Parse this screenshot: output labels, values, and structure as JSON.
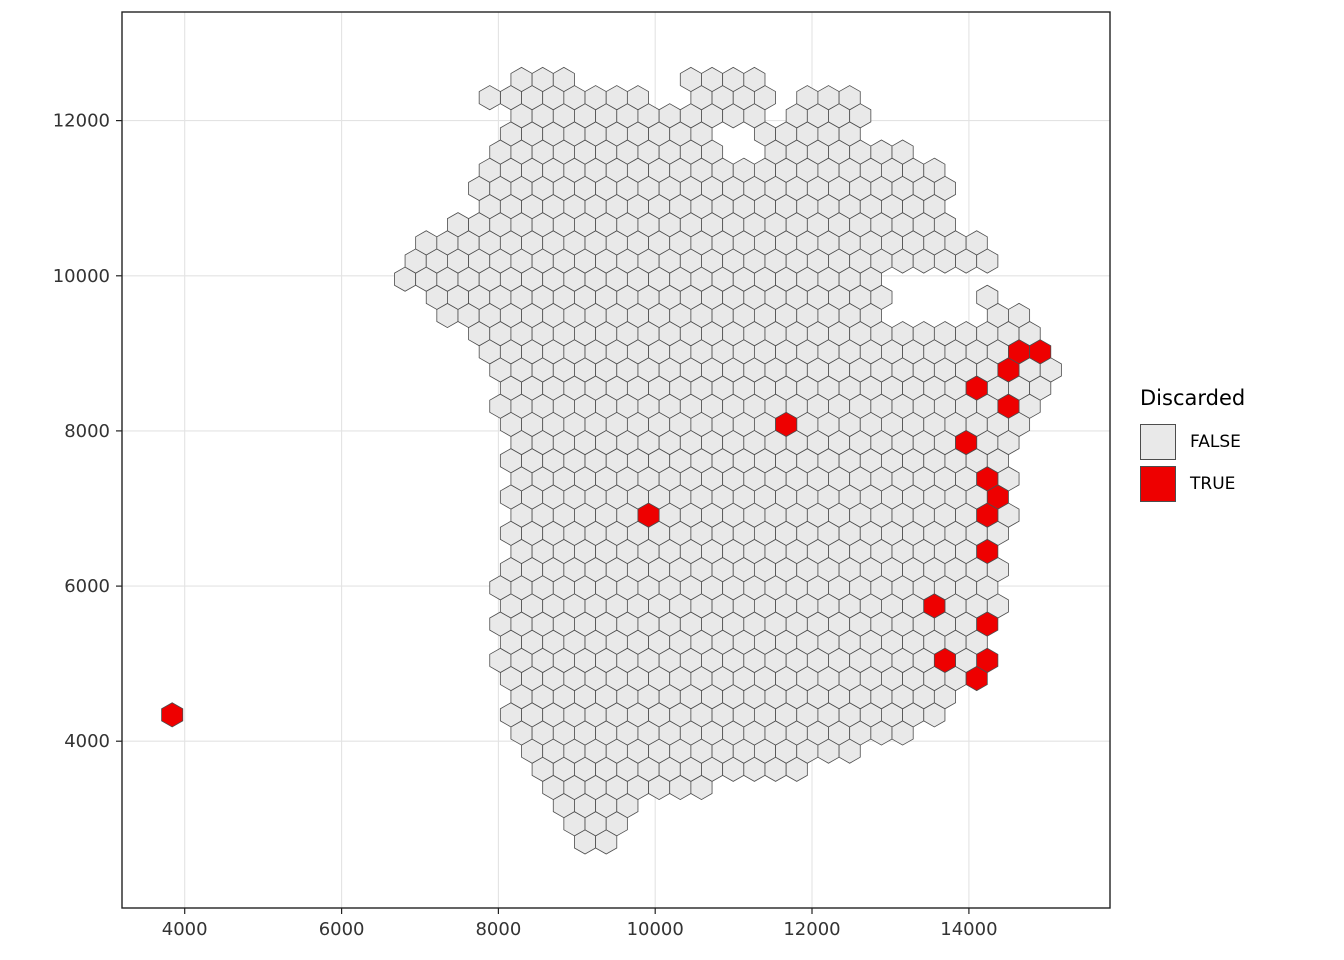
{
  "chart_data": {
    "type": "hexbin",
    "title": "",
    "xlabel": "",
    "ylabel": "",
    "x_ticks": [
      4000,
      6000,
      8000,
      10000,
      12000,
      14000
    ],
    "y_ticks": [
      4000,
      6000,
      8000,
      10000,
      12000
    ],
    "xlim": [
      3200,
      15800
    ],
    "ylim": [
      1850,
      13400
    ],
    "grid_on": true,
    "legend_position": "right",
    "legend": {
      "title": "Discarded",
      "entries": [
        {
          "label": "FALSE",
          "color": "#e9e9e9"
        },
        {
          "label": "TRUE",
          "color": "#ee0000"
        }
      ]
    },
    "colors": {
      "false_fill": "#e9e9e9",
      "true_fill": "#ee0000",
      "hex_stroke": "#4d4d4d",
      "gridline": "#e3e3e3",
      "panel_border": "#222222",
      "tick_label": "#333333",
      "panel_bg": "#ffffff"
    },
    "hex_grid": {
      "x0": 3300,
      "y0": 2000,
      "dx": 270,
      "dy": 234
    },
    "region_outline": [
      [
        8080,
        12140
      ],
      [
        8280,
        12550
      ],
      [
        8720,
        12650
      ],
      [
        9170,
        12460
      ],
      [
        9810,
        12420
      ],
      [
        10130,
        12070
      ],
      [
        10380,
        12270
      ],
      [
        10440,
        12650
      ],
      [
        10760,
        12760
      ],
      [
        11270,
        12720
      ],
      [
        11440,
        12330
      ],
      [
        11490,
        11620
      ],
      [
        11590,
        11600
      ],
      [
        11690,
        12330
      ],
      [
        11850,
        12520
      ],
      [
        12290,
        12500
      ],
      [
        12640,
        12140
      ],
      [
        12740,
        11750
      ],
      [
        13190,
        11650
      ],
      [
        13570,
        11430
      ],
      [
        13760,
        11040
      ],
      [
        13890,
        10650
      ],
      [
        14210,
        10460
      ],
      [
        14340,
        10200
      ],
      [
        14210,
        9880
      ],
      [
        14400,
        9690
      ],
      [
        14780,
        9560
      ],
      [
        15010,
        9170
      ],
      [
        15060,
        8720
      ],
      [
        14910,
        8140
      ],
      [
        14650,
        7750
      ],
      [
        14530,
        7370
      ],
      [
        14550,
        6850
      ],
      [
        14400,
        6340
      ],
      [
        14400,
        5820
      ],
      [
        14210,
        5300
      ],
      [
        14210,
        4850
      ],
      [
        13890,
        4530
      ],
      [
        13510,
        4210
      ],
      [
        13000,
        3950
      ],
      [
        12360,
        3820
      ],
      [
        11590,
        3560
      ],
      [
        10570,
        3370
      ],
      [
        9940,
        3240
      ],
      [
        9550,
        2850
      ],
      [
        9300,
        2530
      ],
      [
        9110,
        2360
      ],
      [
        8940,
        2600
      ],
      [
        8790,
        2980
      ],
      [
        8600,
        3300
      ],
      [
        8280,
        3690
      ],
      [
        8150,
        4140
      ],
      [
        8020,
        4660
      ],
      [
        8000,
        5300
      ],
      [
        8020,
        6340
      ],
      [
        8090,
        7370
      ],
      [
        8020,
        8140
      ],
      [
        7830,
        8790
      ],
      [
        7640,
        9170
      ],
      [
        7260,
        9560
      ],
      [
        6850,
        9820
      ],
      [
        6720,
        10140
      ],
      [
        6880,
        10460
      ],
      [
        7260,
        10650
      ],
      [
        7580,
        10780
      ],
      [
        7740,
        11100
      ],
      [
        7860,
        11560
      ],
      [
        7990,
        11940
      ]
    ],
    "holes": [
      [
        [
          12950,
          10050
        ],
        [
          14150,
          10050
        ],
        [
          14200,
          9250
        ],
        [
          13000,
          9350
        ]
      ],
      [
        [
          10850,
          11900
        ],
        [
          11300,
          11900
        ],
        [
          11300,
          11400
        ],
        [
          10850,
          11400
        ]
      ]
    ],
    "extra_hexes": [
      [
        7900,
        12190
      ]
    ],
    "true_hexes": [
      [
        3960,
        4430
      ],
      [
        9990,
        6930
      ],
      [
        11680,
        8150
      ],
      [
        14030,
        8580
      ],
      [
        14400,
        8760
      ],
      [
        14560,
        9020
      ],
      [
        14780,
        9020
      ],
      [
        14630,
        8810
      ],
      [
        14590,
        8420
      ],
      [
        14030,
        7910
      ],
      [
        14250,
        7390
      ],
      [
        14250,
        7170
      ],
      [
        14120,
        7010
      ],
      [
        14340,
        7010
      ],
      [
        14210,
        6530
      ],
      [
        13650,
        5670
      ],
      [
        14250,
        5590
      ],
      [
        14310,
        5150
      ],
      [
        13650,
        5050
      ],
      [
        14030,
        4770
      ]
    ]
  }
}
